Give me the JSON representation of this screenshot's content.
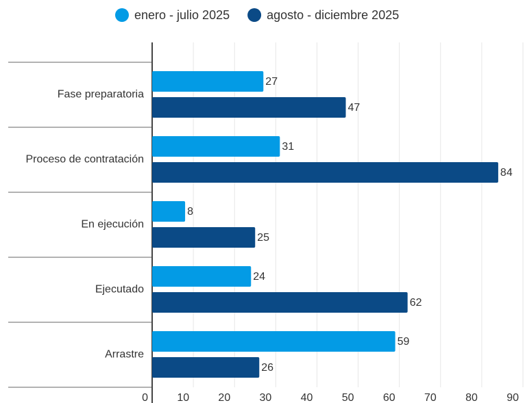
{
  "chart_data": {
    "type": "bar",
    "orientation": "horizontal",
    "categories": [
      "Fase preparatoria",
      "Proceso de contratación",
      "En ejecución",
      "Ejecutado",
      "Arrastre"
    ],
    "series": [
      {
        "name": "enero - julio 2025",
        "color": "#039be5",
        "values": [
          27,
          31,
          8,
          24,
          59
        ]
      },
      {
        "name": "agosto - diciembre 2025",
        "color": "#0b4a86",
        "values": [
          47,
          84,
          25,
          62,
          26
        ]
      }
    ],
    "xlim": [
      0,
      90
    ],
    "xticks": [
      0,
      10,
      20,
      30,
      40,
      50,
      60,
      70,
      80,
      90
    ],
    "grid": true,
    "legend": "top"
  }
}
